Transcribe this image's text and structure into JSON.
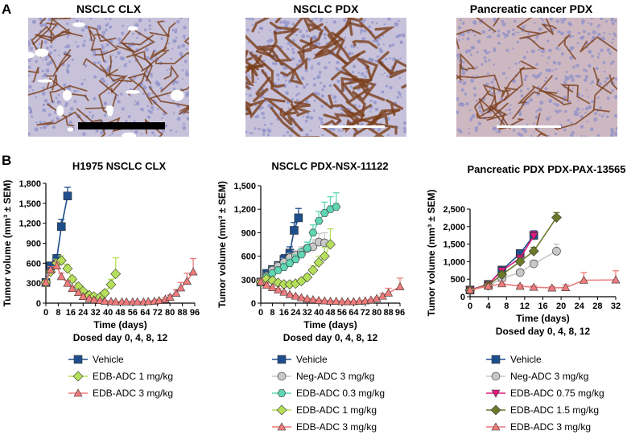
{
  "panels": {
    "a": "A",
    "b": "B"
  },
  "images": [
    {
      "title": "NSCLC CLX",
      "scale_bar_color": "#000000"
    },
    {
      "title": "NSCLC PDX",
      "scale_bar_color": "#ffffff"
    },
    {
      "title": "Pancreatic cancer PDX",
      "scale_bar_color": "#ffffff"
    }
  ],
  "colors": {
    "vehicle": "#1f4e8c",
    "neg_adc": "#c8c8c8",
    "edb_0_3": "#5fd6b4",
    "edb_0_75": "#e0197d",
    "edb_1": "#b6e05a",
    "edb_1_5": "#6b7a2a",
    "edb_3": "#ef7b7b",
    "stain_brown": "#7a3e1a",
    "hematoxylin": "#8d90c8"
  },
  "chart_data": [
    {
      "type": "line",
      "title": "H1975 NSCLC CLX",
      "xlabel": "Time (days)",
      "ylabel": "Tumor volume (mm³ ± SEM)",
      "note": "Dosed day 0, 4, 8, 12",
      "xlim": [
        0,
        96
      ],
      "ylim": [
        0,
        1800
      ],
      "xticks": [
        "0",
        "8",
        "16",
        "24",
        "32",
        "40",
        "48",
        "56",
        "64",
        "72",
        "80",
        "88",
        "96"
      ],
      "yticks": [
        "0",
        "300",
        "600",
        "900",
        "1,200",
        "1,500",
        "1,800"
      ],
      "series": [
        {
          "name": "Vehicle",
          "marker": "square",
          "color_key": "vehicle",
          "x": [
            0,
            3,
            7,
            10,
            14
          ],
          "y": [
            310,
            560,
            670,
            1150,
            1610
          ],
          "err": [
            30,
            50,
            60,
            110,
            130
          ]
        },
        {
          "name": "EDB-ADC 1 mg/kg",
          "marker": "diamond",
          "color_key": "edb_1",
          "x": [
            0,
            3,
            7,
            10,
            14,
            17,
            21,
            24,
            28,
            31,
            35,
            38,
            42,
            45
          ],
          "y": [
            310,
            470,
            600,
            640,
            520,
            360,
            250,
            180,
            120,
            100,
            90,
            150,
            280,
            440
          ],
          "err": [
            30,
            40,
            60,
            70,
            60,
            40,
            30,
            25,
            20,
            15,
            15,
            40,
            80,
            240
          ]
        },
        {
          "name": "EDB-ADC 3 mg/kg",
          "marker": "triangle",
          "color_key": "edb_3",
          "x": [
            0,
            3,
            7,
            10,
            14,
            17,
            21,
            24,
            28,
            31,
            35,
            38,
            42,
            45,
            49,
            52,
            56,
            59,
            63,
            66,
            70,
            73,
            77,
            80,
            84,
            87,
            91,
            95
          ],
          "y": [
            310,
            500,
            560,
            400,
            300,
            220,
            160,
            100,
            70,
            50,
            40,
            30,
            25,
            20,
            20,
            20,
            20,
            20,
            20,
            25,
            30,
            40,
            60,
            90,
            150,
            230,
            330,
            470
          ],
          "err": [
            30,
            50,
            60,
            50,
            40,
            30,
            20,
            15,
            10,
            10,
            8,
            8,
            6,
            6,
            6,
            6,
            6,
            6,
            6,
            8,
            10,
            15,
            20,
            30,
            50,
            80,
            120,
            200
          ]
        }
      ]
    },
    {
      "type": "line",
      "title": "NSCLC PDX-NSX-11122",
      "xlabel": "Time (days)",
      "ylabel": "Tumor volume (mm³ ± SEM)",
      "note": "Dosed day 0, 4, 8, 12",
      "xlim": [
        0,
        96
      ],
      "ylim": [
        0,
        1500
      ],
      "xticks": [
        "0",
        "8",
        "16",
        "24",
        "32",
        "40",
        "48",
        "56",
        "64",
        "72",
        "80",
        "88",
        "96"
      ],
      "yticks": [
        "0",
        "300",
        "600",
        "900",
        "1,200",
        "1,500"
      ],
      "series": [
        {
          "name": "Vehicle",
          "marker": "square",
          "color_key": "vehicle",
          "x": [
            0,
            4,
            8,
            12,
            16,
            20,
            23,
            26
          ],
          "y": [
            270,
            380,
            430,
            480,
            560,
            640,
            930,
            1090
          ],
          "err": [
            30,
            40,
            45,
            50,
            60,
            80,
            100,
            120
          ]
        },
        {
          "name": "Neg-ADC 3 mg/kg",
          "marker": "circle",
          "color_key": "neg_adc",
          "x": [
            0,
            4,
            8,
            12,
            16,
            20,
            24,
            28,
            32,
            36,
            40,
            44
          ],
          "y": [
            270,
            350,
            420,
            470,
            520,
            580,
            610,
            650,
            700,
            720,
            780,
            770
          ],
          "err": [
            30,
            35,
            40,
            45,
            50,
            55,
            60,
            70,
            80,
            90,
            110,
            130
          ]
        },
        {
          "name": "EDB-ADC 0.3 mg/kg",
          "marker": "hexagon",
          "color_key": "edb_0_3",
          "x": [
            0,
            4,
            8,
            12,
            16,
            20,
            24,
            28,
            32,
            36,
            40,
            44,
            48,
            52
          ],
          "y": [
            270,
            340,
            380,
            420,
            460,
            510,
            560,
            620,
            700,
            900,
            1050,
            1150,
            1200,
            1230
          ],
          "err": [
            30,
            35,
            40,
            45,
            50,
            55,
            60,
            70,
            80,
            100,
            120,
            140,
            160,
            180
          ]
        },
        {
          "name": "EDB-ADC 1 mg/kg",
          "marker": "diamond",
          "color_key": "edb_1",
          "x": [
            0,
            4,
            8,
            12,
            16,
            20,
            24,
            28,
            32,
            36,
            40,
            44,
            48
          ],
          "y": [
            270,
            310,
            290,
            260,
            240,
            240,
            250,
            280,
            330,
            420,
            520,
            600,
            750
          ],
          "err": [
            30,
            30,
            30,
            25,
            25,
            25,
            30,
            35,
            40,
            60,
            80,
            110,
            200
          ]
        },
        {
          "name": "EDB-ADC 3 mg/kg",
          "marker": "triangle",
          "color_key": "edb_3",
          "x": [
            0,
            4,
            8,
            12,
            16,
            20,
            24,
            28,
            32,
            36,
            40,
            44,
            48,
            52,
            56,
            60,
            64,
            68,
            72,
            76,
            80,
            84,
            88,
            96
          ],
          "y": [
            270,
            230,
            200,
            170,
            140,
            110,
            90,
            70,
            55,
            45,
            35,
            30,
            25,
            25,
            20,
            20,
            20,
            25,
            30,
            40,
            60,
            90,
            130,
            210
          ],
          "err": [
            30,
            25,
            20,
            18,
            15,
            12,
            10,
            8,
            8,
            6,
            6,
            6,
            5,
            5,
            5,
            5,
            5,
            5,
            6,
            8,
            15,
            30,
            60,
            110
          ]
        }
      ]
    },
    {
      "type": "line",
      "title": "Pancreatic PDX PDX-PAX-13565",
      "xlabel": "Time (days)",
      "ylabel": "Tumor volume (mm³ ± SEM)",
      "note": "Dosed day 0, 4, 8, 12",
      "xlim": [
        0,
        32
      ],
      "ylim": [
        0,
        2500
      ],
      "xticks": [
        "0",
        "4",
        "8",
        "12",
        "16",
        "20",
        "24",
        "28",
        "32"
      ],
      "yticks": [
        "0",
        "500",
        "1,000",
        "1,500",
        "2,000",
        "2,500"
      ],
      "series": [
        {
          "name": "Vehicle",
          "marker": "square",
          "color_key": "vehicle",
          "x": [
            0,
            4,
            7,
            11,
            14
          ],
          "y": [
            190,
            350,
            760,
            1230,
            1750
          ],
          "err": [
            20,
            40,
            60,
            90,
            130
          ]
        },
        {
          "name": "Neg-ADC 3 mg/kg",
          "marker": "circle",
          "color_key": "neg_adc",
          "x": [
            0,
            4,
            7,
            11,
            14,
            19
          ],
          "y": [
            190,
            310,
            520,
            690,
            940,
            1300
          ],
          "err": [
            20,
            30,
            40,
            60,
            90,
            200
          ]
        },
        {
          "name": "EDB-ADC 0.75 mg/kg",
          "marker": "triangle-down",
          "color_key": "edb_0_75",
          "x": [
            0,
            4,
            7,
            11,
            14
          ],
          "y": [
            190,
            350,
            740,
            1100,
            1730
          ],
          "err": [
            20,
            40,
            60,
            90,
            120
          ]
        },
        {
          "name": "EDB-ADC 1.5 mg/kg",
          "marker": "diamond",
          "color_key": "edb_1_5",
          "x": [
            0,
            4,
            7,
            11,
            14,
            19
          ],
          "y": [
            190,
            330,
            630,
            1000,
            1300,
            2260
          ],
          "err": [
            20,
            35,
            50,
            80,
            110,
            140
          ]
        },
        {
          "name": "EDB-ADC 3 mg/kg",
          "marker": "triangle",
          "color_key": "edb_3",
          "x": [
            0,
            4,
            7,
            11,
            14,
            18,
            21,
            25,
            32
          ],
          "y": [
            190,
            300,
            370,
            300,
            270,
            250,
            260,
            470,
            480
          ],
          "err": [
            20,
            40,
            50,
            40,
            40,
            40,
            80,
            220,
            260
          ]
        }
      ]
    }
  ]
}
